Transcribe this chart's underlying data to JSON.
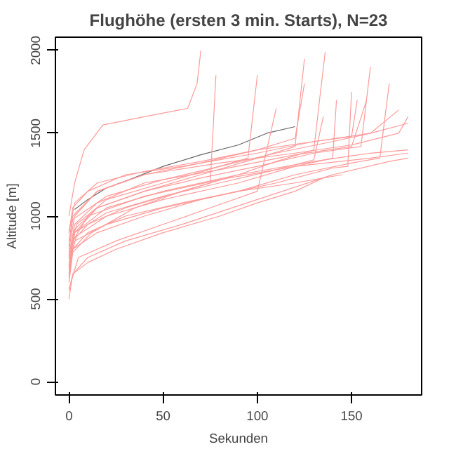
{
  "chart_data": {
    "type": "line",
    "title": "Flughöhe (ersten 3 min. Starts), N=23",
    "xlabel": "Sekunden",
    "ylabel": "Altitude [m]",
    "xlim": [
      -7.2,
      187.2
    ],
    "ylim": [
      -80,
      2080
    ],
    "xticks": [
      0,
      50,
      100,
      150
    ],
    "yticks": [
      0,
      500,
      1000,
      1500,
      2000
    ],
    "grid": false,
    "line_style": "solid",
    "series": [
      {
        "color": "#ff9a9a",
        "x": [
          0,
          3,
          8,
          18,
          40,
          63,
          68,
          70
        ],
        "values": [
          1000,
          1200,
          1400,
          1550,
          1600,
          1650,
          1800,
          2000
        ]
      },
      {
        "color": "#666666",
        "x": [
          3,
          10,
          20,
          32,
          50,
          70,
          90,
          105,
          120
        ],
        "values": [
          1040,
          1100,
          1170,
          1220,
          1300,
          1370,
          1430,
          1500,
          1540
        ]
      },
      {
        "color": "#ff9a9a",
        "x": [
          0,
          2,
          10,
          25,
          50,
          80,
          100,
          120,
          135,
          140
        ],
        "values": [
          550,
          650,
          720,
          800,
          900,
          1000,
          1080,
          1150,
          1230,
          1250
        ]
      },
      {
        "color": "#ff9a9a",
        "x": [
          0,
          2,
          10,
          30,
          60,
          90,
          110,
          130,
          133,
          136
        ],
        "values": [
          650,
          850,
          950,
          1050,
          1150,
          1250,
          1330,
          1400,
          1700,
          1990
        ]
      },
      {
        "color": "#ff9a9a",
        "x": [
          0,
          3,
          15,
          40,
          70,
          100,
          120,
          125
        ],
        "values": [
          700,
          900,
          1050,
          1150,
          1250,
          1350,
          1420,
          1950
        ]
      },
      {
        "color": "#ff9a9a",
        "x": [
          0,
          2,
          12,
          35,
          60,
          75,
          78
        ],
        "values": [
          600,
          780,
          900,
          1050,
          1150,
          1200,
          1850
        ]
      },
      {
        "color": "#ff9a9a",
        "x": [
          0,
          4,
          20,
          50,
          80,
          95,
          100
        ],
        "values": [
          750,
          950,
          1100,
          1200,
          1300,
          1350,
          1850
        ]
      },
      {
        "color": "#ff9a9a",
        "x": [
          0,
          3,
          15,
          40,
          70,
          100,
          130,
          160,
          180
        ],
        "values": [
          800,
          1000,
          1150,
          1250,
          1320,
          1400,
          1450,
          1500,
          1560
        ]
      },
      {
        "color": "#ff9a9a",
        "x": [
          0,
          2,
          15,
          40,
          80,
          120,
          150,
          175,
          180
        ],
        "values": [
          850,
          1000,
          1150,
          1250,
          1320,
          1380,
          1430,
          1500,
          1600
        ]
      },
      {
        "color": "#ff9a9a",
        "x": [
          0,
          3,
          20,
          50,
          90,
          130,
          160,
          180
        ],
        "values": [
          700,
          900,
          1050,
          1150,
          1250,
          1330,
          1380,
          1400
        ]
      },
      {
        "color": "#ff9a9a",
        "x": [
          0,
          2,
          10,
          30,
          60,
          100,
          140,
          170,
          180
        ],
        "values": [
          500,
          650,
          750,
          850,
          950,
          1100,
          1250,
          1330,
          1350
        ]
      },
      {
        "color": "#ff9a9a",
        "x": [
          0,
          3,
          20,
          50,
          90,
          120,
          150,
          165,
          170
        ],
        "values": [
          680,
          850,
          950,
          1050,
          1150,
          1250,
          1320,
          1350,
          1800
        ]
      },
      {
        "color": "#ff9a9a",
        "x": [
          0,
          2,
          15,
          40,
          70,
          110,
          140,
          148,
          150
        ],
        "values": [
          620,
          800,
          900,
          1000,
          1100,
          1200,
          1290,
          1300,
          1750
        ]
      },
      {
        "color": "#ff9a9a",
        "x": [
          0,
          2,
          10,
          30,
          60,
          100,
          130,
          150,
          153
        ],
        "values": [
          900,
          1050,
          1150,
          1250,
          1300,
          1380,
          1450,
          1480,
          1700
        ]
      },
      {
        "color": "#ff9a9a",
        "x": [
          0,
          3,
          15,
          40,
          80,
          120,
          150,
          158
        ],
        "values": [
          760,
          950,
          1080,
          1200,
          1280,
          1370,
          1420,
          1700
        ]
      },
      {
        "color": "#ff9a9a",
        "x": [
          0,
          2,
          20,
          50,
          80,
          110,
          140,
          160,
          175
        ],
        "values": [
          820,
          980,
          1120,
          1220,
          1300,
          1380,
          1450,
          1500,
          1640
        ]
      },
      {
        "color": "#ff9a9a",
        "x": [
          0,
          5,
          25,
          50,
          75,
          100,
          110
        ],
        "values": [
          560,
          750,
          850,
          950,
          1050,
          1150,
          1650
        ]
      },
      {
        "color": "#ff9a9a",
        "x": [
          0,
          3,
          15,
          40,
          70,
          100,
          120,
          125
        ],
        "values": [
          900,
          1080,
          1200,
          1270,
          1330,
          1400,
          1470,
          1800
        ]
      },
      {
        "color": "#ff9a9a",
        "x": [
          0,
          2,
          10,
          30,
          60,
          90,
          120,
          145
        ],
        "values": [
          640,
          800,
          900,
          1000,
          1080,
          1150,
          1200,
          1250
        ]
      },
      {
        "color": "#ff9a9a",
        "x": [
          0,
          4,
          20,
          50,
          90,
          120,
          140,
          142
        ],
        "values": [
          720,
          880,
          1000,
          1100,
          1200,
          1300,
          1350,
          1700
        ]
      },
      {
        "color": "#ff9a9a",
        "x": [
          0,
          3,
          15,
          40,
          70,
          100,
          130,
          155,
          160
        ],
        "values": [
          780,
          920,
          1050,
          1150,
          1230,
          1300,
          1380,
          1420,
          1900
        ]
      },
      {
        "color": "#ff9a9a",
        "x": [
          0,
          2,
          10,
          40,
          80,
          120,
          160,
          180
        ],
        "values": [
          680,
          850,
          1000,
          1120,
          1220,
          1300,
          1350,
          1380
        ]
      },
      {
        "color": "#ff9a9a",
        "x": [
          0,
          3,
          20,
          50,
          80,
          110,
          130,
          135
        ],
        "values": [
          740,
          900,
          1020,
          1120,
          1200,
          1280,
          1340,
          1600
        ]
      }
    ]
  }
}
